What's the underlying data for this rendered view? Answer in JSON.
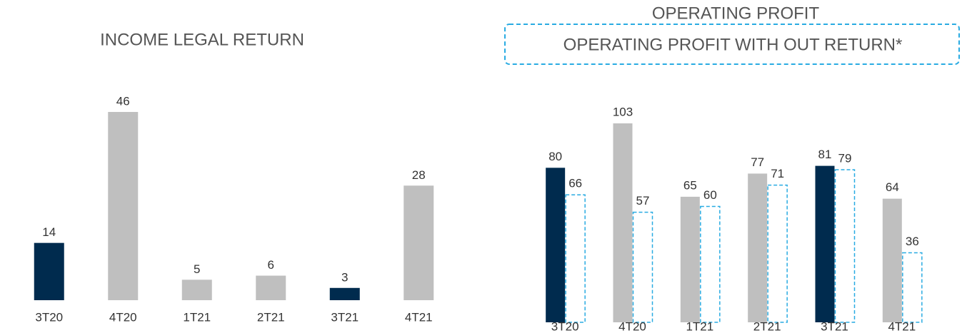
{
  "chart_data": [
    {
      "type": "bar",
      "title": "INCOME LEGAL RETURN",
      "categories": [
        "3T20",
        "4T20",
        "1T21",
        "2T21",
        "3T21",
        "4T21"
      ],
      "values": [
        14,
        46,
        5,
        6,
        3,
        28
      ],
      "colors": [
        "#002b4e",
        "#bfbfbf",
        "#bfbfbf",
        "#bfbfbf",
        "#002b4e",
        "#bfbfbf"
      ]
    },
    {
      "type": "grouped_bar",
      "categories": [
        "3T20",
        "4T20",
        "1T21",
        "2T21",
        "3T21",
        "4T21"
      ],
      "series": [
        {
          "name": "OPERATING PROFIT",
          "values": [
            80,
            103,
            65,
            77,
            81,
            64
          ],
          "colors": [
            "#002b4e",
            "#bfbfbf",
            "#bfbfbf",
            "#bfbfbf",
            "#002b4e",
            "#bfbfbf"
          ]
        },
        {
          "name": "OPERATING PROFIT WITH OUT RETURN*",
          "values": [
            66,
            57,
            60,
            71,
            79,
            36
          ],
          "color": "#29abe2",
          "style": "dashed"
        }
      ]
    }
  ]
}
